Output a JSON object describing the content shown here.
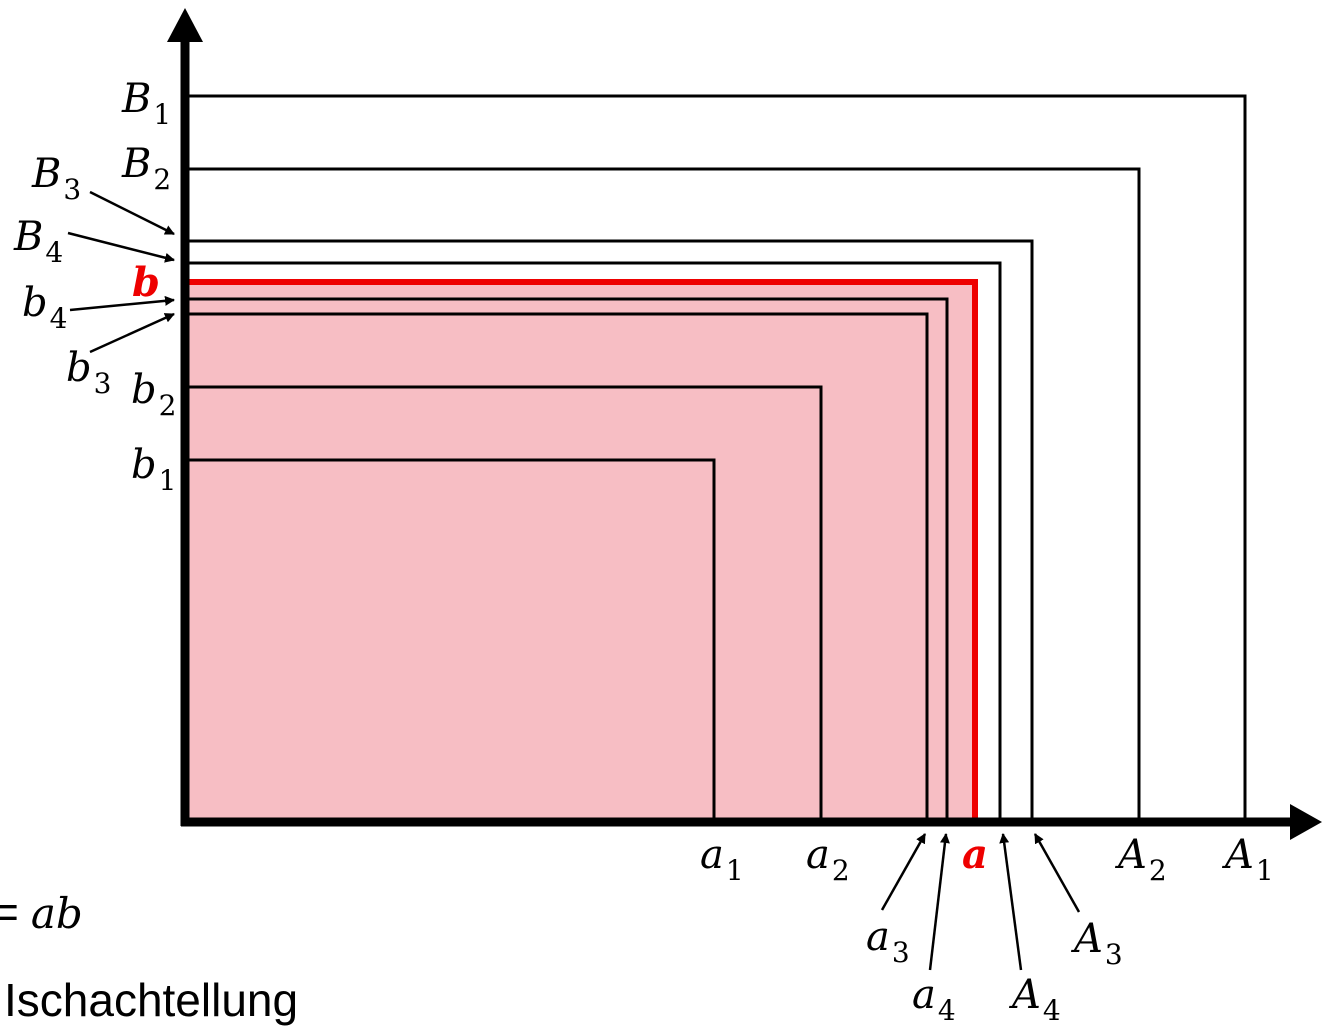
{
  "diagram": {
    "colors": {
      "fill": "#f7bec4",
      "red": "#ee0000",
      "stroke": "#000000"
    },
    "y_labels": {
      "B1": {
        "base": "B",
        "sub": "1"
      },
      "B2": {
        "base": "B",
        "sub": "2"
      },
      "B3": {
        "base": "B",
        "sub": "3"
      },
      "B4": {
        "base": "B",
        "sub": "4"
      },
      "b": {
        "base": "b"
      },
      "b4": {
        "base": "b",
        "sub": "4"
      },
      "b3": {
        "base": "b",
        "sub": "3"
      },
      "b2": {
        "base": "b",
        "sub": "2"
      },
      "b1": {
        "base": "b",
        "sub": "1"
      }
    },
    "x_labels": {
      "a1": {
        "base": "a",
        "sub": "1"
      },
      "a2": {
        "base": "a",
        "sub": "2"
      },
      "a": {
        "base": "a"
      },
      "A2": {
        "base": "A",
        "sub": "2"
      },
      "A1": {
        "base": "A",
        "sub": "1"
      },
      "a3": {
        "base": "a",
        "sub": "3"
      },
      "a4": {
        "base": "a",
        "sub": "4"
      },
      "A3": {
        "base": "A",
        "sub": "3"
      },
      "A4": {
        "base": "A",
        "sub": "4"
      }
    },
    "formula": {
      "prefix": "=",
      "expr": "ab"
    },
    "caption": "Ischachtellung"
  }
}
